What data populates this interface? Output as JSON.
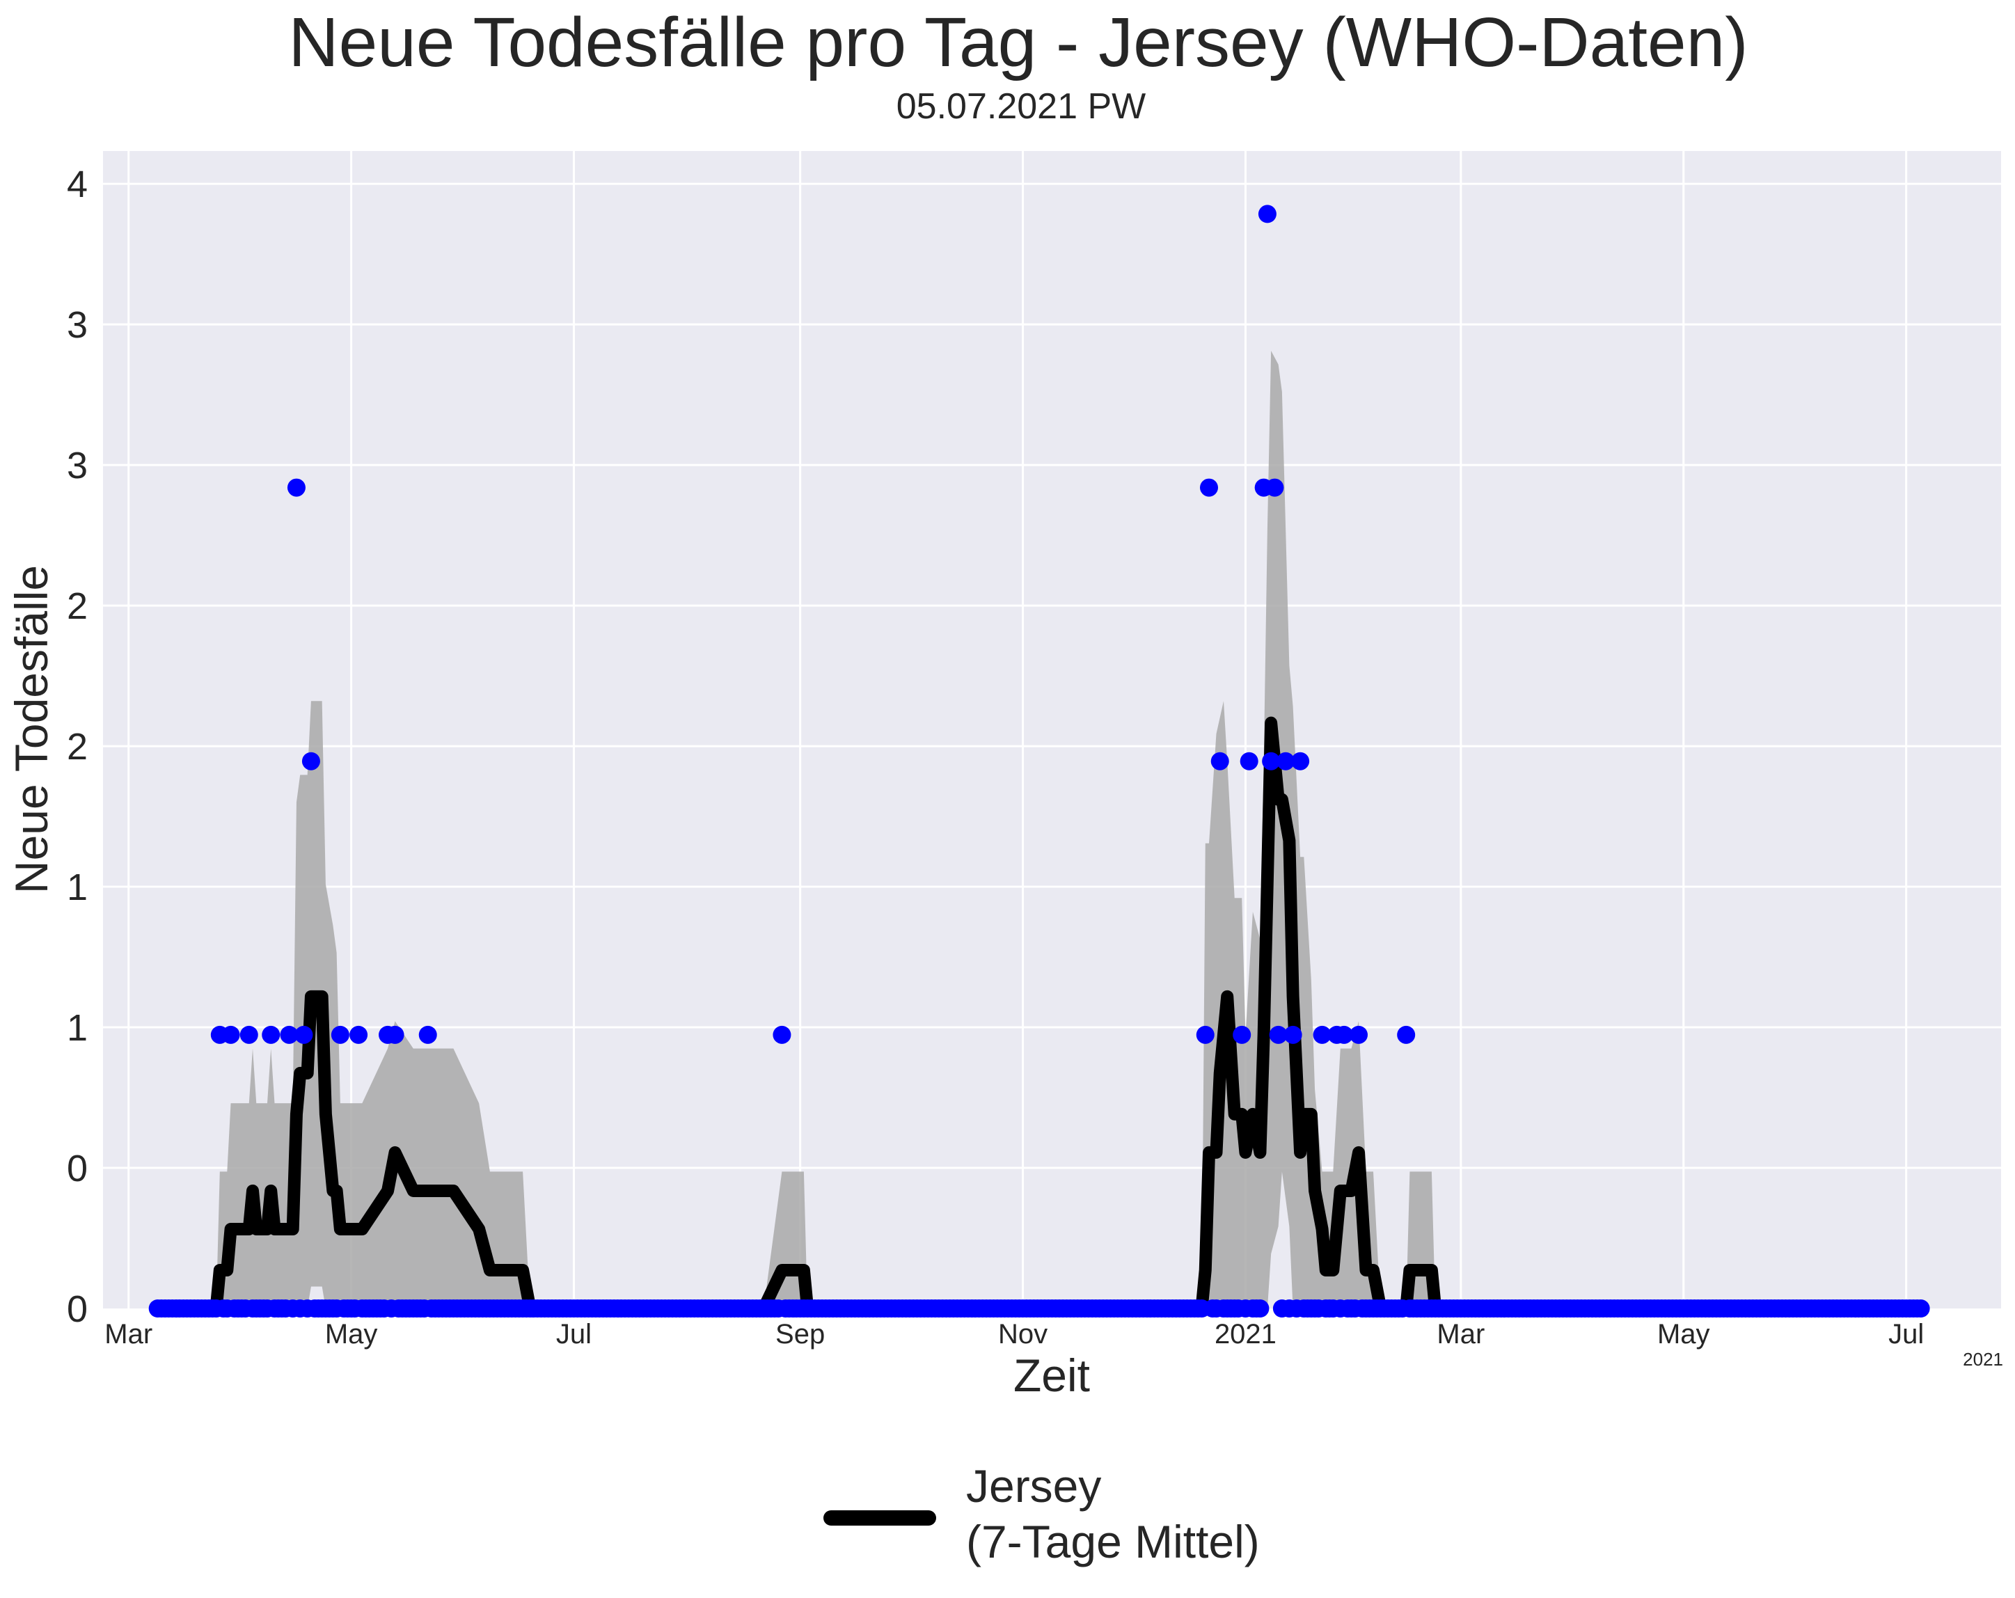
{
  "chart_data": {
    "type": "line",
    "title": "Neue Todesfälle pro Tag - Jersey (WHO-Daten)",
    "subtitle": "05.07.2021 PW",
    "xlabel": "Zeit",
    "ylabel": "Neue Todesfälle",
    "x_offset_label": "2021",
    "x_ticks": [
      {
        "date": "2020-03-01",
        "label": "Mar"
      },
      {
        "date": "2020-05-01",
        "label": "May"
      },
      {
        "date": "2020-07-01",
        "label": "Jul"
      },
      {
        "date": "2020-09-01",
        "label": "Sep"
      },
      {
        "date": "2020-11-01",
        "label": "Nov"
      },
      {
        "date": "2021-01-01",
        "label": "2021"
      },
      {
        "date": "2021-03-01",
        "label": "Mar"
      },
      {
        "date": "2021-05-01",
        "label": "May"
      },
      {
        "date": "2021-07-01",
        "label": "Jul"
      }
    ],
    "y_ticks": [
      {
        "label": "0"
      },
      {
        "label": "0"
      },
      {
        "label": "1"
      },
      {
        "label": "1"
      },
      {
        "label": "2"
      },
      {
        "label": "2"
      },
      {
        "label": "3"
      },
      {
        "label": "3"
      },
      {
        "label": "4"
      }
    ],
    "xlim": [
      "2020-02-23",
      "2021-07-27"
    ],
    "ylim": [
      0,
      4.23
    ],
    "grid": true,
    "legend": {
      "placement": "bottom-center",
      "entries": [
        {
          "label": "Jersey\n(7-Tage Mittel)",
          "color": "#000000"
        }
      ]
    },
    "colors": {
      "points": "#0000ff",
      "line": "#000000",
      "band": "#a9a9a9",
      "background": "#eaeaf2",
      "grid": "#ffffff"
    },
    "series": [
      {
        "kind": "scatter",
        "values_nonzero": [
          [
            "2020-03-26",
            1
          ],
          [
            "2020-03-29",
            1
          ],
          [
            "2020-04-03",
            1
          ],
          [
            "2020-04-09",
            1
          ],
          [
            "2020-04-14",
            1
          ],
          [
            "2020-04-16",
            3
          ],
          [
            "2020-04-18",
            1
          ],
          [
            "2020-04-20",
            2
          ],
          [
            "2020-04-28",
            1
          ],
          [
            "2020-05-03",
            1
          ],
          [
            "2020-05-11",
            1
          ],
          [
            "2020-05-13",
            1
          ],
          [
            "2020-05-22",
            1
          ],
          [
            "2020-08-27",
            1
          ],
          [
            "2020-12-21",
            1
          ],
          [
            "2020-12-22",
            3
          ],
          [
            "2020-12-25",
            2
          ],
          [
            "2020-12-31",
            1
          ],
          [
            "2021-01-02",
            2
          ],
          [
            "2021-01-06",
            3
          ],
          [
            "2021-01-07",
            4
          ],
          [
            "2021-01-08",
            2
          ],
          [
            "2021-01-09",
            3
          ],
          [
            "2021-01-10",
            1
          ],
          [
            "2021-01-12",
            2
          ],
          [
            "2021-01-14",
            1
          ],
          [
            "2021-01-16",
            2
          ],
          [
            "2021-01-22",
            1
          ],
          [
            "2021-01-26",
            1
          ],
          [
            "2021-01-28",
            1
          ],
          [
            "2021-02-01",
            1
          ],
          [
            "2021-02-14",
            1
          ]
        ],
        "zero_range": [
          "2020-03-09",
          "2021-07-05"
        ]
      },
      {
        "kind": "line",
        "values": [
          [
            "2020-03-09",
            0
          ],
          [
            "2020-03-25",
            0
          ],
          [
            "2020-03-26",
            0.14
          ],
          [
            "2020-03-28",
            0.14
          ],
          [
            "2020-03-29",
            0.29
          ],
          [
            "2020-04-03",
            0.29
          ],
          [
            "2020-04-04",
            0.43
          ],
          [
            "2020-04-05",
            0.29
          ],
          [
            "2020-04-08",
            0.29
          ],
          [
            "2020-04-09",
            0.43
          ],
          [
            "2020-04-10",
            0.29
          ],
          [
            "2020-04-15",
            0.29
          ],
          [
            "2020-04-16",
            0.71
          ],
          [
            "2020-04-17",
            0.86
          ],
          [
            "2020-04-19",
            0.86
          ],
          [
            "2020-04-20",
            1.14
          ],
          [
            "2020-04-23",
            1.14
          ],
          [
            "2020-04-24",
            0.71
          ],
          [
            "2020-04-26",
            0.43
          ],
          [
            "2020-04-27",
            0.43
          ],
          [
            "2020-04-28",
            0.29
          ],
          [
            "2020-05-04",
            0.29
          ],
          [
            "2020-05-11",
            0.43
          ],
          [
            "2020-05-13",
            0.57
          ],
          [
            "2020-05-18",
            0.43
          ],
          [
            "2020-05-29",
            0.43
          ],
          [
            "2020-06-05",
            0.29
          ],
          [
            "2020-06-08",
            0.14
          ],
          [
            "2020-06-17",
            0.14
          ],
          [
            "2020-06-19",
            0
          ],
          [
            "2020-08-22",
            0
          ],
          [
            "2020-08-27",
            0.14
          ],
          [
            "2020-09-02",
            0.14
          ],
          [
            "2020-09-03",
            0
          ],
          [
            "2020-12-20",
            0
          ],
          [
            "2020-12-21",
            0.14
          ],
          [
            "2020-12-22",
            0.57
          ],
          [
            "2020-12-24",
            0.57
          ],
          [
            "2020-12-25",
            0.86
          ],
          [
            "2020-12-27",
            1.14
          ],
          [
            "2020-12-29",
            0.71
          ],
          [
            "2020-12-31",
            0.71
          ],
          [
            "2021-01-01",
            0.57
          ],
          [
            "2021-01-03",
            0.71
          ],
          [
            "2021-01-05",
            0.57
          ],
          [
            "2021-01-06",
            1.0
          ],
          [
            "2021-01-07",
            1.57
          ],
          [
            "2021-01-08",
            2.14
          ],
          [
            "2021-01-10",
            1.86
          ],
          [
            "2021-01-11",
            1.86
          ],
          [
            "2021-01-13",
            1.71
          ],
          [
            "2021-01-14",
            1.14
          ],
          [
            "2021-01-16",
            0.57
          ],
          [
            "2021-01-17",
            0.71
          ],
          [
            "2021-01-19",
            0.71
          ],
          [
            "2021-01-20",
            0.43
          ],
          [
            "2021-01-22",
            0.29
          ],
          [
            "2021-01-23",
            0.14
          ],
          [
            "2021-01-25",
            0.14
          ],
          [
            "2021-01-27",
            0.43
          ],
          [
            "2021-01-30",
            0.43
          ],
          [
            "2021-02-01",
            0.57
          ],
          [
            "2021-02-03",
            0.14
          ],
          [
            "2021-02-05",
            0.14
          ],
          [
            "2021-02-07",
            0
          ],
          [
            "2021-02-14",
            0
          ],
          [
            "2021-02-15",
            0.14
          ],
          [
            "2021-02-21",
            0.14
          ],
          [
            "2021-02-22",
            0
          ],
          [
            "2021-07-05",
            0
          ]
        ]
      },
      {
        "kind": "band",
        "values": [
          [
            "2020-03-25",
            0,
            0
          ],
          [
            "2020-03-26",
            0,
            0.5
          ],
          [
            "2020-03-28",
            0,
            0.5
          ],
          [
            "2020-03-29",
            0,
            0.75
          ],
          [
            "2020-04-03",
            0,
            0.75
          ],
          [
            "2020-04-04",
            0,
            0.95
          ],
          [
            "2020-04-05",
            0,
            0.75
          ],
          [
            "2020-04-08",
            0,
            0.75
          ],
          [
            "2020-04-09",
            0,
            0.95
          ],
          [
            "2020-04-10",
            0,
            0.75
          ],
          [
            "2020-04-15",
            0,
            0.75
          ],
          [
            "2020-04-16",
            0,
            1.85
          ],
          [
            "2020-04-17",
            0,
            1.95
          ],
          [
            "2020-04-19",
            0,
            1.95
          ],
          [
            "2020-04-20",
            0.08,
            2.22
          ],
          [
            "2020-04-23",
            0.08,
            2.22
          ],
          [
            "2020-04-24",
            0,
            1.55
          ],
          [
            "2020-04-26",
            0,
            1.4
          ],
          [
            "2020-04-27",
            0,
            1.3
          ],
          [
            "2020-04-28",
            0,
            0.75
          ],
          [
            "2020-05-04",
            0,
            0.75
          ],
          [
            "2020-05-11",
            0,
            0.95
          ],
          [
            "2020-05-13",
            0,
            1.05
          ],
          [
            "2020-05-18",
            0,
            0.95
          ],
          [
            "2020-05-29",
            0,
            0.95
          ],
          [
            "2020-06-05",
            0,
            0.75
          ],
          [
            "2020-06-08",
            0,
            0.5
          ],
          [
            "2020-06-17",
            0,
            0.5
          ],
          [
            "2020-06-19",
            0,
            0
          ],
          [
            "2020-08-22",
            0,
            0
          ],
          [
            "2020-08-27",
            0,
            0.5
          ],
          [
            "2020-09-02",
            0,
            0.5
          ],
          [
            "2020-09-03",
            0,
            0
          ],
          [
            "2020-12-20",
            0,
            0
          ],
          [
            "2020-12-21",
            0,
            1.7
          ],
          [
            "2020-12-22",
            0,
            1.7
          ],
          [
            "2020-12-24",
            0,
            2.1
          ],
          [
            "2020-12-26",
            0,
            2.22
          ],
          [
            "2020-12-27",
            0,
            2.0
          ],
          [
            "2020-12-29",
            0,
            1.5
          ],
          [
            "2020-12-31",
            0,
            1.5
          ],
          [
            "2021-01-01",
            0,
            1.0
          ],
          [
            "2021-01-03",
            0,
            1.45
          ],
          [
            "2021-01-05",
            0,
            1.35
          ],
          [
            "2021-01-06",
            0,
            2.0
          ],
          [
            "2021-01-07",
            0,
            2.85
          ],
          [
            "2021-01-08",
            0.2,
            3.5
          ],
          [
            "2021-01-10",
            0.3,
            3.45
          ],
          [
            "2021-01-11",
            0.5,
            3.35
          ],
          [
            "2021-01-13",
            0.3,
            2.35
          ],
          [
            "2021-01-14",
            0,
            2.2
          ],
          [
            "2021-01-16",
            0,
            1.65
          ],
          [
            "2021-01-17",
            0,
            1.65
          ],
          [
            "2021-01-19",
            0,
            1.2
          ],
          [
            "2021-01-20",
            0,
            0.8
          ],
          [
            "2021-01-22",
            0,
            0.5
          ],
          [
            "2021-01-25",
            0,
            0.5
          ],
          [
            "2021-01-27",
            0,
            0.95
          ],
          [
            "2021-01-30",
            0,
            0.95
          ],
          [
            "2021-02-01",
            0,
            1.05
          ],
          [
            "2021-02-03",
            0,
            0.5
          ],
          [
            "2021-02-05",
            0,
            0.5
          ],
          [
            "2021-02-07",
            0,
            0
          ],
          [
            "2021-02-14",
            0,
            0
          ],
          [
            "2021-02-15",
            0,
            0.5
          ],
          [
            "2021-02-21",
            0,
            0.5
          ],
          [
            "2021-02-22",
            0,
            0
          ]
        ]
      }
    ]
  }
}
